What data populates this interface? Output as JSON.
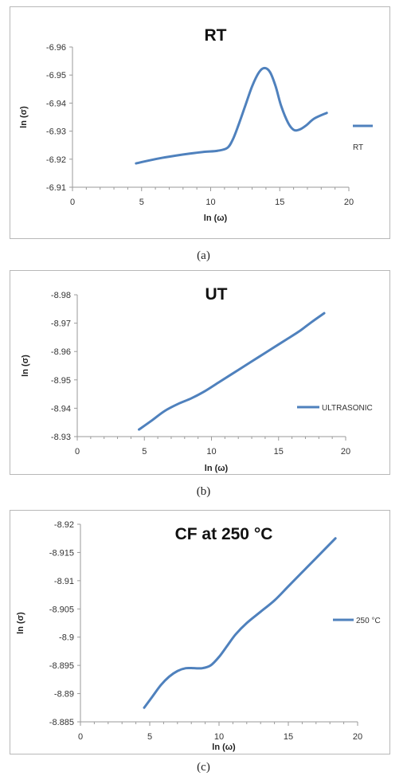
{
  "chart_data": [
    {
      "type": "line",
      "title": "RT",
      "xlabel": "ln (ω)",
      "ylabel": "ln (σ)",
      "xlim": [
        0,
        20
      ],
      "ylim": [
        -6.91,
        -6.96
      ],
      "xticks": [
        "0",
        "5",
        "10",
        "15",
        "20"
      ],
      "yticks": [
        "-6.91",
        "-6.92",
        "-6.93",
        "-6.94",
        "-6.95",
        "-6.96"
      ],
      "legend_position": "right",
      "series": [
        {
          "name": "RT",
          "color": "#4f81bd",
          "x": [
            4.6,
            5.5,
            6.5,
            7.5,
            8.5,
            9.5,
            10.5,
            11.2,
            11.6,
            12.0,
            12.5,
            13.0,
            13.5,
            13.9,
            14.3,
            14.7,
            15.1,
            15.6,
            16.0,
            16.4,
            16.9,
            17.5,
            18.4
          ],
          "y": [
            -6.9185,
            -6.9195,
            -6.9205,
            -6.9213,
            -6.922,
            -6.9226,
            -6.923,
            -6.924,
            -6.927,
            -6.932,
            -6.939,
            -6.946,
            -6.951,
            -6.9525,
            -6.951,
            -6.946,
            -6.939,
            -6.933,
            -6.9305,
            -6.9305,
            -6.932,
            -6.9345,
            -6.9365
          ]
        }
      ],
      "caption": "(a)"
    },
    {
      "type": "line",
      "title": "UT",
      "xlabel": "ln (ω)",
      "ylabel": "ln (σ)",
      "xlim": [
        0,
        20
      ],
      "ylim": [
        -8.93,
        -8.98
      ],
      "xticks": [
        "0",
        "5",
        "10",
        "15",
        "20"
      ],
      "yticks": [
        "-8.93",
        "-8.94",
        "-8.95",
        "-8.96",
        "-8.97",
        "-8.98"
      ],
      "legend_position": "right",
      "series": [
        {
          "name": "ULTRASONIC",
          "color": "#4f81bd",
          "x": [
            4.6,
            5.5,
            6.5,
            7.5,
            8.5,
            9.5,
            10.5,
            11.5,
            12.5,
            13.5,
            14.5,
            15.5,
            16.5,
            17.5,
            18.4
          ],
          "y": [
            -8.9325,
            -8.9355,
            -8.939,
            -8.9415,
            -8.9435,
            -8.946,
            -8.949,
            -8.952,
            -8.955,
            -8.958,
            -8.961,
            -8.964,
            -8.967,
            -8.9705,
            -8.9735
          ]
        }
      ],
      "caption": "(b)"
    },
    {
      "type": "line",
      "title": "CF at 250 °C",
      "xlabel": "ln (ω)",
      "ylabel": "ln (σ)",
      "xlim": [
        0,
        20
      ],
      "ylim": [
        -8.885,
        -8.92
      ],
      "xticks": [
        "0",
        "5",
        "10",
        "15",
        "20"
      ],
      "yticks": [
        "-8.885",
        "-8.89",
        "-8.895",
        "-8.9",
        "-8.905",
        "-8.91",
        "-8.915",
        "-8.92"
      ],
      "legend_position": "right",
      "series": [
        {
          "name": "250 °C",
          "color": "#4f81bd",
          "x": [
            4.6,
            5.2,
            5.8,
            6.4,
            7.0,
            7.6,
            8.2,
            8.8,
            9.4,
            10.0,
            10.6,
            11.2,
            12.0,
            13.0,
            14.0,
            15.0,
            16.0,
            17.0,
            18.4
          ],
          "y": [
            -8.8875,
            -8.8895,
            -8.8915,
            -8.893,
            -8.894,
            -8.8945,
            -8.8945,
            -8.8945,
            -8.895,
            -8.8965,
            -8.8985,
            -8.9005,
            -8.9025,
            -8.9045,
            -8.9065,
            -8.909,
            -8.9115,
            -8.914,
            -8.9175
          ]
        }
      ],
      "caption": "(c)"
    }
  ]
}
